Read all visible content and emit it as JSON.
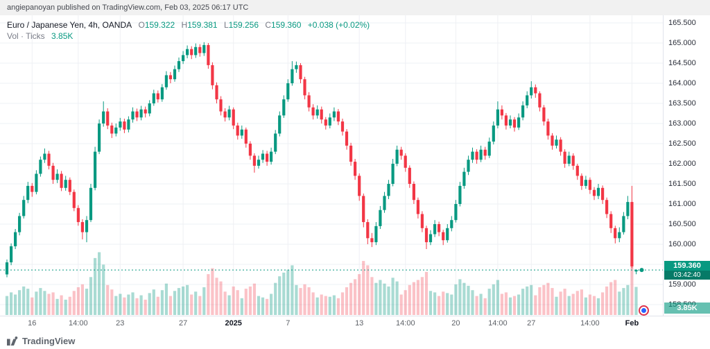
{
  "published_bar": {
    "text": "angiepanoyan published on TradingView.com, Feb 03, 2025 06:17 UTC"
  },
  "legend": {
    "symbol_title": "Euro / Japanese Yen, 4h, OANDA",
    "o_label": "O",
    "o_value": "159.322",
    "h_label": "H",
    "h_value": "159.381",
    "l_label": "L",
    "l_value": "159.256",
    "c_label": "C",
    "c_value": "159.360",
    "change": "+0.038 (+0.02%)",
    "vol_label": "Vol · Ticks",
    "vol_value": "3.85K"
  },
  "price_axis": {
    "last_price_label": "159.360",
    "countdown": "03:42:40",
    "volume_badge": "3.85K"
  },
  "footer": {
    "logo_text": "TradingView"
  },
  "colors": {
    "up": "#089981",
    "down": "#f23645",
    "vol_up": "rgba(8,153,129,0.35)",
    "vol_down": "rgba(242,54,69,0.30)",
    "grid": "#eef0f4",
    "axis_border": "#e0e3eb",
    "badge": "#089981",
    "countdown_bg": "#067a67"
  },
  "chart_data": {
    "type": "candlestick+volume",
    "title": "Euro / Japanese Yen, 4h, OANDA",
    "timeframe": "4h",
    "last_price": 159.36,
    "price_range": [
      158.0,
      165.5
    ],
    "grid_step": 0.5,
    "candle_format": [
      "open",
      "high",
      "low",
      "close",
      "volume_ticks"
    ],
    "y_ticks": [
      "165.500",
      "165.000",
      "164.500",
      "164.000",
      "163.500",
      "163.000",
      "162.500",
      "162.000",
      "161.500",
      "161.000",
      "160.500",
      "160.000",
      "159.500",
      "159.000",
      "158.500"
    ],
    "x_ticks": [
      {
        "label": "16",
        "i": 6
      },
      {
        "label": "14:00",
        "i": 17
      },
      {
        "label": "23",
        "i": 27
      },
      {
        "label": "27",
        "i": 42
      },
      {
        "label": "2025",
        "i": 54,
        "major": true
      },
      {
        "label": "7",
        "i": 67
      },
      {
        "label": "13",
        "i": 84
      },
      {
        "label": "14:00",
        "i": 95
      },
      {
        "label": "20",
        "i": 107
      },
      {
        "label": "14:00",
        "i": 117
      },
      {
        "label": "27",
        "i": 125
      },
      {
        "label": "14:00",
        "i": 139
      },
      {
        "label": "Feb",
        "i": 149,
        "major": true
      }
    ],
    "candles": [
      [
        159.25,
        159.62,
        159.18,
        159.55,
        2600
      ],
      [
        159.55,
        160.02,
        159.48,
        159.95,
        3100
      ],
      [
        159.95,
        160.38,
        159.88,
        160.3,
        2800
      ],
      [
        160.3,
        160.78,
        160.22,
        160.7,
        3400
      ],
      [
        160.7,
        161.2,
        160.64,
        161.1,
        3900
      ],
      [
        161.1,
        161.55,
        161.02,
        161.45,
        3600
      ],
      [
        161.45,
        161.52,
        161.18,
        161.3,
        2400
      ],
      [
        161.3,
        161.84,
        161.24,
        161.75,
        3200
      ],
      [
        161.75,
        162.18,
        161.68,
        162.1,
        3700
      ],
      [
        162.1,
        162.38,
        162.02,
        162.25,
        3300
      ],
      [
        162.25,
        162.32,
        161.86,
        161.95,
        2900
      ],
      [
        161.95,
        162.02,
        161.5,
        161.6,
        3100
      ],
      [
        161.6,
        161.86,
        161.52,
        161.75,
        2200
      ],
      [
        161.75,
        161.82,
        161.32,
        161.4,
        2700
      ],
      [
        161.4,
        161.7,
        161.33,
        161.6,
        2100
      ],
      [
        161.6,
        161.66,
        161.22,
        161.3,
        2500
      ],
      [
        161.3,
        161.36,
        160.82,
        160.9,
        3300
      ],
      [
        160.9,
        160.97,
        160.46,
        160.55,
        3800
      ],
      [
        160.55,
        160.62,
        160.12,
        160.3,
        4200
      ],
      [
        160.3,
        160.7,
        160.05,
        160.6,
        3600
      ],
      [
        160.6,
        161.5,
        160.55,
        161.4,
        5200
      ],
      [
        161.4,
        162.42,
        161.34,
        162.3,
        7800
      ],
      [
        162.3,
        163.1,
        162.24,
        163.0,
        8600
      ],
      [
        163.0,
        163.55,
        162.92,
        163.3,
        6900
      ],
      [
        163.3,
        163.38,
        162.86,
        162.95,
        4100
      ],
      [
        162.95,
        163.02,
        162.64,
        162.75,
        3500
      ],
      [
        162.75,
        163.0,
        162.68,
        162.9,
        2600
      ],
      [
        162.9,
        163.14,
        162.82,
        163.05,
        2900
      ],
      [
        163.05,
        163.12,
        162.76,
        162.85,
        2400
      ],
      [
        162.85,
        163.18,
        162.78,
        163.1,
        2800
      ],
      [
        163.1,
        163.4,
        163.02,
        163.3,
        3100
      ],
      [
        163.3,
        163.37,
        163.06,
        163.15,
        2300
      ],
      [
        163.15,
        163.44,
        163.08,
        163.35,
        2700
      ],
      [
        163.35,
        163.42,
        163.15,
        163.25,
        2100
      ],
      [
        163.25,
        163.58,
        163.18,
        163.5,
        3000
      ],
      [
        163.5,
        163.84,
        163.44,
        163.75,
        3500
      ],
      [
        163.75,
        163.82,
        163.52,
        163.6,
        2500
      ],
      [
        163.6,
        163.98,
        163.54,
        163.9,
        3400
      ],
      [
        163.9,
        164.3,
        163.84,
        164.2,
        4300
      ],
      [
        164.2,
        164.28,
        164.0,
        164.1,
        2600
      ],
      [
        164.1,
        164.44,
        164.04,
        164.35,
        3300
      ],
      [
        164.35,
        164.64,
        164.28,
        164.55,
        3700
      ],
      [
        164.55,
        164.8,
        164.48,
        164.7,
        3900
      ],
      [
        164.7,
        164.94,
        164.62,
        164.85,
        4100
      ],
      [
        164.85,
        164.92,
        164.6,
        164.7,
        2800
      ],
      [
        164.7,
        164.99,
        164.63,
        164.9,
        3200
      ],
      [
        164.9,
        164.97,
        164.66,
        164.75,
        2600
      ],
      [
        164.75,
        165.02,
        164.68,
        164.95,
        3800
      ],
      [
        164.95,
        165.0,
        164.36,
        164.45,
        5600
      ],
      [
        164.45,
        164.52,
        163.85,
        163.95,
        6400
      ],
      [
        163.95,
        164.02,
        163.5,
        163.6,
        5100
      ],
      [
        163.6,
        163.68,
        163.2,
        163.3,
        4600
      ],
      [
        163.3,
        163.38,
        163.05,
        163.15,
        3200
      ],
      [
        163.15,
        163.44,
        163.08,
        163.35,
        2700
      ],
      [
        163.35,
        163.4,
        162.86,
        162.95,
        3900
      ],
      [
        162.95,
        163.02,
        162.6,
        162.7,
        3400
      ],
      [
        162.7,
        162.95,
        162.62,
        162.85,
        2300
      ],
      [
        162.85,
        162.9,
        162.4,
        162.5,
        3600
      ],
      [
        162.5,
        162.56,
        162.1,
        162.2,
        3900
      ],
      [
        162.2,
        162.26,
        161.78,
        161.95,
        4300
      ],
      [
        161.95,
        162.2,
        161.88,
        162.1,
        2600
      ],
      [
        162.1,
        162.34,
        162.02,
        162.25,
        2400
      ],
      [
        162.25,
        162.32,
        161.95,
        162.05,
        2200
      ],
      [
        162.05,
        162.4,
        161.98,
        162.3,
        2900
      ],
      [
        162.3,
        162.84,
        162.24,
        162.75,
        4400
      ],
      [
        162.75,
        163.3,
        162.68,
        163.2,
        5300
      ],
      [
        163.2,
        163.7,
        163.14,
        163.6,
        5800
      ],
      [
        163.6,
        164.1,
        163.54,
        164.0,
        6200
      ],
      [
        164.0,
        164.55,
        163.94,
        164.35,
        6800
      ],
      [
        164.35,
        164.54,
        164.26,
        164.45,
        4100
      ],
      [
        164.45,
        164.5,
        164.0,
        164.1,
        3700
      ],
      [
        164.1,
        164.16,
        163.6,
        163.7,
        4200
      ],
      [
        163.7,
        163.78,
        163.3,
        163.4,
        3800
      ],
      [
        163.4,
        163.48,
        163.1,
        163.2,
        3100
      ],
      [
        163.2,
        163.45,
        163.12,
        163.35,
        2400
      ],
      [
        163.35,
        163.42,
        163.0,
        163.1,
        2800
      ],
      [
        163.1,
        163.16,
        162.85,
        162.95,
        2600
      ],
      [
        162.95,
        163.25,
        162.88,
        163.15,
        2500
      ],
      [
        163.15,
        163.4,
        163.06,
        163.3,
        2700
      ],
      [
        163.3,
        163.36,
        162.96,
        163.05,
        2300
      ],
      [
        163.05,
        163.12,
        162.7,
        162.8,
        3100
      ],
      [
        162.8,
        162.86,
        162.35,
        162.45,
        3800
      ],
      [
        162.45,
        162.52,
        161.95,
        162.05,
        4400
      ],
      [
        162.05,
        162.12,
        161.6,
        161.7,
        4900
      ],
      [
        161.7,
        161.76,
        161.08,
        161.2,
        5600
      ],
      [
        161.2,
        161.26,
        160.42,
        160.55,
        7400
      ],
      [
        160.55,
        160.62,
        160.0,
        160.15,
        6800
      ],
      [
        160.15,
        160.28,
        159.93,
        160.05,
        5200
      ],
      [
        160.05,
        160.55,
        159.98,
        160.45,
        4400
      ],
      [
        160.45,
        160.95,
        160.38,
        160.85,
        4800
      ],
      [
        160.85,
        161.3,
        160.78,
        161.2,
        4300
      ],
      [
        161.2,
        161.6,
        161.12,
        161.5,
        3900
      ],
      [
        161.5,
        162.12,
        161.44,
        162.0,
        5100
      ],
      [
        162.0,
        162.45,
        161.94,
        162.35,
        4600
      ],
      [
        162.35,
        162.42,
        162.1,
        162.2,
        2800
      ],
      [
        162.2,
        162.26,
        161.8,
        161.9,
        3400
      ],
      [
        161.9,
        161.96,
        161.4,
        161.5,
        4100
      ],
      [
        161.5,
        161.56,
        161.0,
        161.1,
        4500
      ],
      [
        161.1,
        161.16,
        160.64,
        160.75,
        4800
      ],
      [
        160.75,
        160.82,
        160.3,
        160.4,
        5200
      ],
      [
        160.4,
        160.46,
        159.88,
        160.05,
        5900
      ],
      [
        160.05,
        160.35,
        159.98,
        160.25,
        3300
      ],
      [
        160.25,
        160.6,
        160.18,
        160.5,
        3100
      ],
      [
        160.5,
        160.56,
        160.2,
        160.3,
        2600
      ],
      [
        160.3,
        160.36,
        159.98,
        160.1,
        3200
      ],
      [
        160.1,
        160.5,
        160.04,
        160.4,
        3000
      ],
      [
        160.4,
        160.7,
        160.32,
        160.6,
        2800
      ],
      [
        160.6,
        161.1,
        160.54,
        161.0,
        4200
      ],
      [
        161.0,
        161.55,
        160.94,
        161.45,
        4900
      ],
      [
        161.45,
        161.9,
        161.38,
        161.8,
        4400
      ],
      [
        161.8,
        162.2,
        161.72,
        162.1,
        4000
      ],
      [
        162.1,
        162.4,
        162.02,
        162.3,
        3400
      ],
      [
        162.3,
        162.36,
        162.0,
        162.1,
        2600
      ],
      [
        162.1,
        162.45,
        162.04,
        162.35,
        2900
      ],
      [
        162.35,
        162.42,
        162.1,
        162.2,
        2300
      ],
      [
        162.2,
        162.65,
        162.14,
        162.55,
        3600
      ],
      [
        162.55,
        163.05,
        162.48,
        162.95,
        4200
      ],
      [
        162.95,
        163.55,
        162.88,
        163.35,
        4800
      ],
      [
        163.35,
        163.45,
        163.1,
        163.2,
        2900
      ],
      [
        163.2,
        163.26,
        162.85,
        162.95,
        3100
      ],
      [
        162.95,
        163.2,
        162.88,
        163.1,
        2400
      ],
      [
        163.1,
        163.16,
        162.8,
        162.9,
        2600
      ],
      [
        162.9,
        163.25,
        162.84,
        163.15,
        2800
      ],
      [
        163.15,
        163.55,
        163.08,
        163.45,
        3600
      ],
      [
        163.45,
        163.8,
        163.38,
        163.7,
        3900
      ],
      [
        163.7,
        164.05,
        163.62,
        163.9,
        4100
      ],
      [
        163.9,
        163.97,
        163.64,
        163.75,
        2700
      ],
      [
        163.75,
        163.8,
        163.3,
        163.4,
        3800
      ],
      [
        163.4,
        163.46,
        162.95,
        163.05,
        4100
      ],
      [
        163.05,
        163.12,
        162.6,
        162.7,
        4400
      ],
      [
        162.7,
        162.76,
        162.35,
        162.45,
        3700
      ],
      [
        162.45,
        162.7,
        162.38,
        162.6,
        2500
      ],
      [
        162.6,
        162.66,
        162.2,
        162.3,
        3200
      ],
      [
        162.3,
        162.36,
        161.9,
        162.0,
        3600
      ],
      [
        162.0,
        162.3,
        161.94,
        162.2,
        2600
      ],
      [
        162.2,
        162.26,
        161.85,
        161.95,
        2900
      ],
      [
        161.95,
        162.0,
        161.6,
        161.7,
        3300
      ],
      [
        161.7,
        161.76,
        161.35,
        161.45,
        3500
      ],
      [
        161.45,
        161.7,
        161.38,
        161.6,
        2400
      ],
      [
        161.6,
        161.66,
        161.25,
        161.35,
        2800
      ],
      [
        161.35,
        161.42,
        161.1,
        161.2,
        2600
      ],
      [
        161.2,
        161.5,
        161.12,
        161.4,
        2300
      ],
      [
        161.4,
        161.46,
        161.0,
        161.1,
        3100
      ],
      [
        161.1,
        161.16,
        160.65,
        160.75,
        3900
      ],
      [
        160.75,
        160.82,
        160.28,
        160.4,
        4500
      ],
      [
        160.4,
        160.46,
        160.02,
        160.15,
        4800
      ],
      [
        160.15,
        160.42,
        160.05,
        160.3,
        3200
      ],
      [
        160.3,
        160.8,
        160.24,
        160.7,
        3700
      ],
      [
        160.7,
        161.2,
        160.62,
        161.05,
        4100
      ],
      [
        161.05,
        161.45,
        159.4,
        159.45,
        9200
      ],
      [
        159.322,
        159.381,
        159.256,
        159.36,
        3850
      ]
    ]
  }
}
